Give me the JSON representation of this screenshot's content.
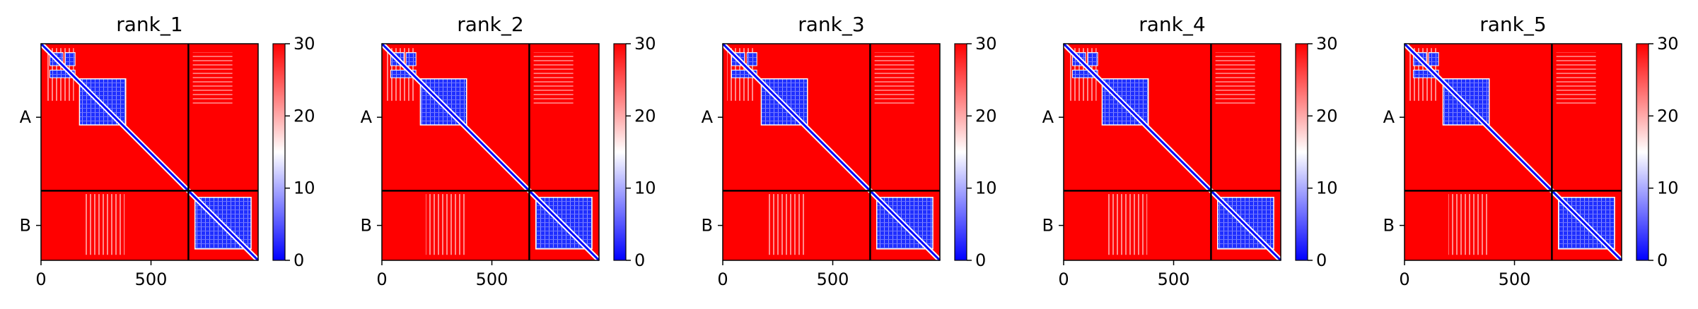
{
  "chart_data": {
    "type": "heatmap",
    "colormap": {
      "low": "#0000ff",
      "mid": "#ffffff",
      "high": "#ff0000"
    },
    "colorbar": {
      "vmin": 0,
      "vmax": 30,
      "ticks": [
        "0",
        "10",
        "20",
        "30"
      ]
    },
    "total_length": 987,
    "chain_boundary": 670,
    "x_ticks": [
      {
        "value": 0,
        "label": "0"
      },
      {
        "value": 500,
        "label": "500"
      }
    ],
    "chains": [
      {
        "label": "A",
        "center": 335
      },
      {
        "label": "B",
        "center": 828
      }
    ],
    "panels": [
      {
        "title": "rank_1"
      },
      {
        "title": "rank_2"
      },
      {
        "title": "rank_3"
      },
      {
        "title": "rank_4"
      },
      {
        "title": "rank_5"
      }
    ]
  }
}
